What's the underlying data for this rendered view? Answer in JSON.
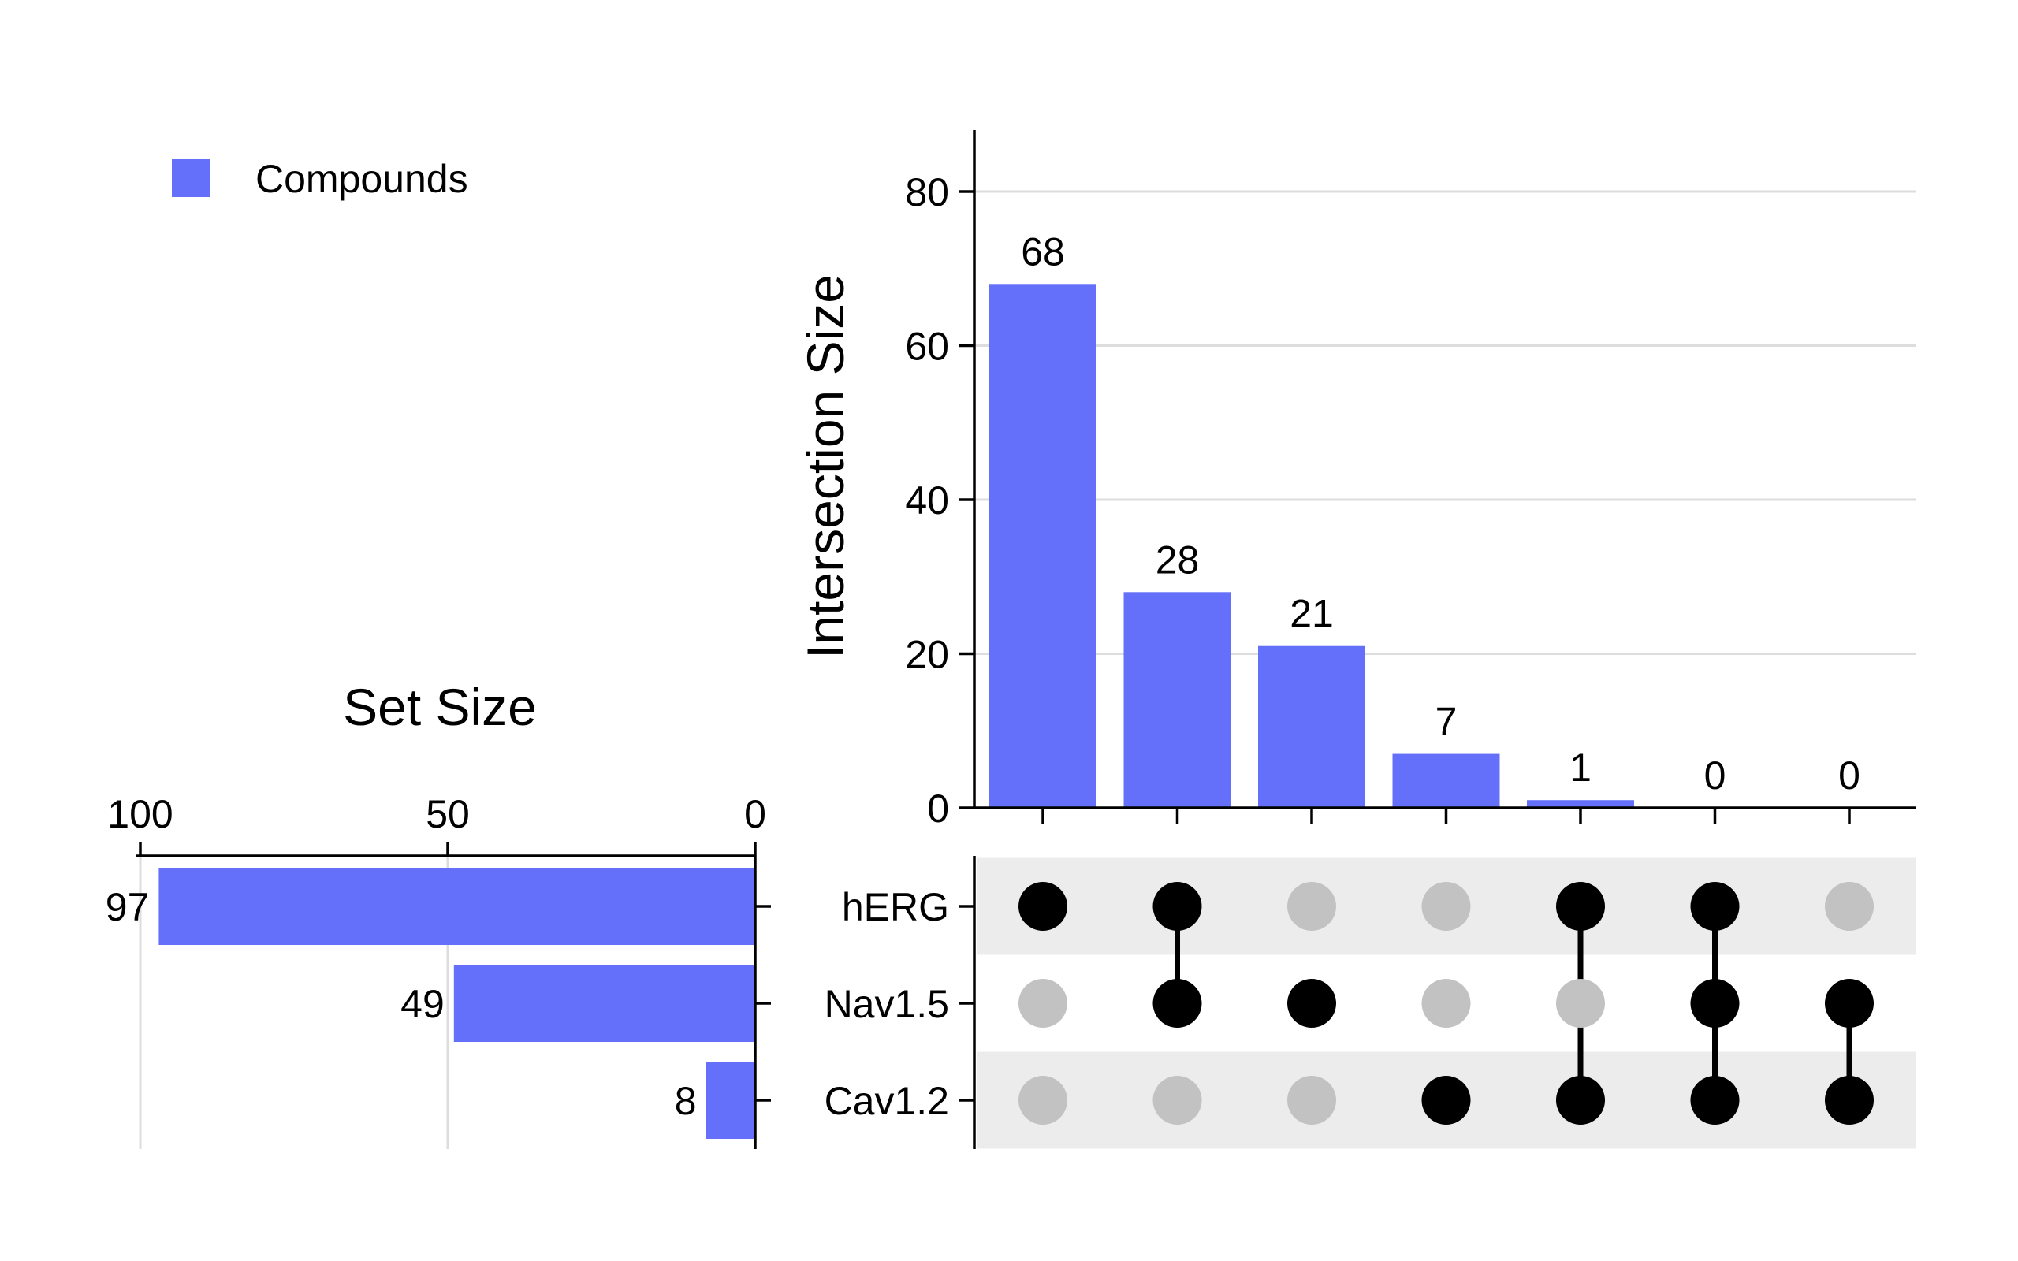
{
  "chart_data": {
    "type": "bar",
    "chart_kind": "upset",
    "legend": {
      "label": "Compounds",
      "color": "#6470fa",
      "placement": "top-left"
    },
    "colors": {
      "bar": "#6470fa",
      "dot_active": "#000000",
      "dot_inactive": "#c2c2c2",
      "row_band": "#ececec",
      "grid": "#dddddd"
    },
    "sets": [
      "hERG",
      "Nav1.5",
      "Cav1.2"
    ],
    "set_sizes": [
      97,
      49,
      8
    ],
    "set_size_axis": {
      "title": "Set Size",
      "ticks": [
        100,
        50,
        0
      ],
      "xlim": [
        100,
        0
      ]
    },
    "intersection_axis": {
      "title": "Intersection Size",
      "ticks": [
        0,
        20,
        40,
        60,
        80
      ],
      "ylim": [
        0,
        88
      ]
    },
    "intersections": [
      {
        "members": [
          true,
          false,
          false
        ],
        "value": 68
      },
      {
        "members": [
          true,
          true,
          false
        ],
        "value": 28
      },
      {
        "members": [
          false,
          true,
          false
        ],
        "value": 21
      },
      {
        "members": [
          false,
          false,
          true
        ],
        "value": 7
      },
      {
        "members": [
          true,
          false,
          true
        ],
        "value": 1
      },
      {
        "members": [
          true,
          true,
          true
        ],
        "value": 0
      },
      {
        "members": [
          false,
          true,
          true
        ],
        "value": 0
      }
    ],
    "grid": true
  }
}
